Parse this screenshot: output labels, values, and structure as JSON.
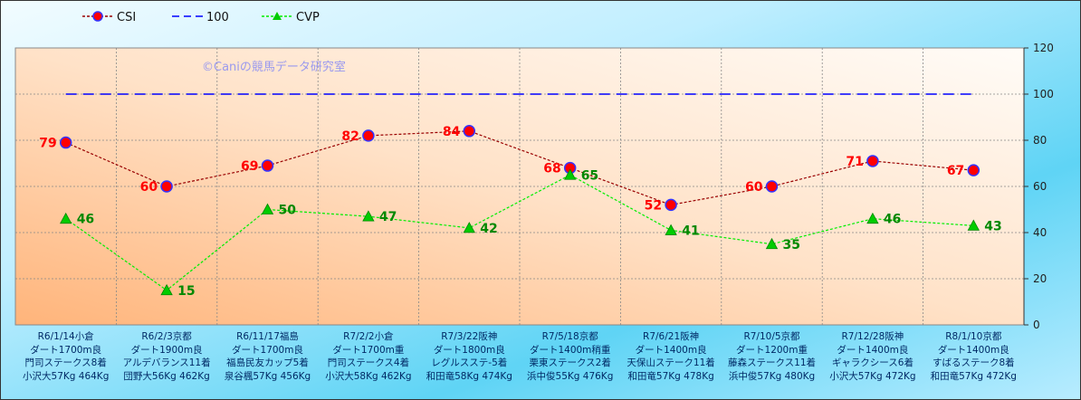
{
  "chart_data": {
    "type": "line",
    "watermark": "©Caniの競馬データ研究室",
    "categories": [
      [
        "R6/1/14小倉",
        "ダート1700m良",
        "門司ステークス8着",
        "小沢大57Kg 464Kg"
      ],
      [
        "R6/2/3京都",
        "ダート1900m良",
        "アルデバランス11着",
        "団野大56Kg 462Kg"
      ],
      [
        "R6/11/17福島",
        "ダート1700m良",
        "福島民友カップ5着",
        "泉谷楓57Kg 456Kg"
      ],
      [
        "R7/2/2小倉",
        "ダート1700m重",
        "門司ステークス4着",
        "小沢大58Kg 462Kg"
      ],
      [
        "R7/3/22阪神",
        "ダート1800m良",
        "レグルスステ-5着",
        "和田竜58Kg 474Kg"
      ],
      [
        "R7/5/18京都",
        "ダート1400m稍重",
        "栗東ステークス2着",
        "浜中俊55Kg 476Kg"
      ],
      [
        "R7/6/21阪神",
        "ダート1400m良",
        "天保山ステーク11着",
        "和田竜57Kg 478Kg"
      ],
      [
        "R7/10/5京都",
        "ダート1200m重",
        "藤森ステークス11着",
        "浜中俊57Kg 480Kg"
      ],
      [
        "R7/12/28阪神",
        "ダート1400m良",
        "ギャラクシース6着",
        "小沢大57Kg 472Kg"
      ],
      [
        "R8/1/10京都",
        "ダート1400m良",
        "すばるステーク8着",
        "和田竜57Kg 472Kg"
      ]
    ],
    "series": [
      {
        "name": "CSI",
        "values": [
          79,
          60,
          69,
          82,
          84,
          68,
          52,
          60,
          71,
          67
        ],
        "color": "#990000",
        "marker": "circle",
        "marker_fill": "#ff0000",
        "marker_edge": "#3333ff",
        "label_color": "#ff0000"
      },
      {
        "name": "100",
        "values": [
          100,
          100,
          100,
          100,
          100,
          100,
          100,
          100,
          100,
          100
        ],
        "color": "#0000ff",
        "style": "dashed"
      },
      {
        "name": "CVP",
        "values": [
          46,
          15,
          50,
          47,
          42,
          65,
          41,
          35,
          46,
          43
        ],
        "color": "#00ee00",
        "marker": "triangle",
        "marker_fill": "#00cc00",
        "label_color": "#008800"
      }
    ],
    "y_axis": {
      "min": 0,
      "max": 120,
      "ticks": [
        0,
        20,
        40,
        60,
        80,
        100,
        120
      ],
      "position": "right"
    },
    "grid": true,
    "legend": "top-left"
  }
}
